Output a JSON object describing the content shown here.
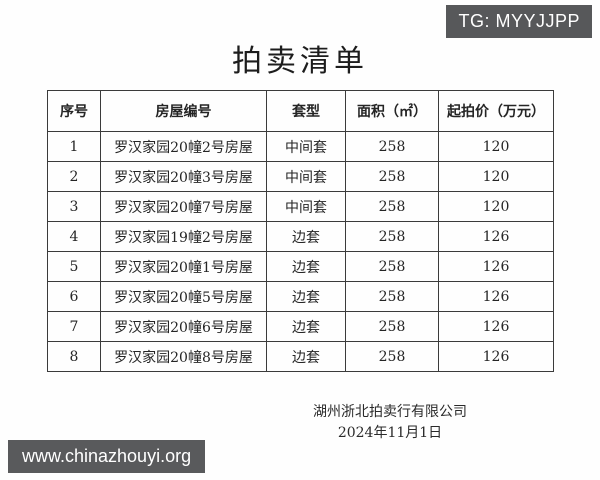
{
  "badge": {
    "text": "TG: MYYJJPP"
  },
  "title": "拍卖清单",
  "table": {
    "headers": [
      "序号",
      "房屋编号",
      "套型",
      "面积（㎡）",
      "起拍价（万元）"
    ],
    "rows": [
      [
        "1",
        "罗汉家园20幢2号房屋",
        "中间套",
        "258",
        "120"
      ],
      [
        "2",
        "罗汉家园20幢3号房屋",
        "中间套",
        "258",
        "120"
      ],
      [
        "3",
        "罗汉家园20幢7号房屋",
        "中间套",
        "258",
        "120"
      ],
      [
        "4",
        "罗汉家园19幢2号房屋",
        "边套",
        "258",
        "126"
      ],
      [
        "5",
        "罗汉家园20幢1号房屋",
        "边套",
        "258",
        "126"
      ],
      [
        "6",
        "罗汉家园20幢5号房屋",
        "边套",
        "258",
        "126"
      ],
      [
        "7",
        "罗汉家园20幢6号房屋",
        "边套",
        "258",
        "126"
      ],
      [
        "8",
        "罗汉家园20幢8号房屋",
        "边套",
        "258",
        "126"
      ]
    ]
  },
  "footer": {
    "company": "湖州浙北拍卖行有限公司",
    "date": "2024年11月1日"
  },
  "watermark": {
    "text": "www.chinazhouyi.org"
  },
  "colors": {
    "badge_bg": "#57585a",
    "watermark_bg": "#595a5c",
    "border": "#3b3b3b",
    "text": "#252525"
  }
}
